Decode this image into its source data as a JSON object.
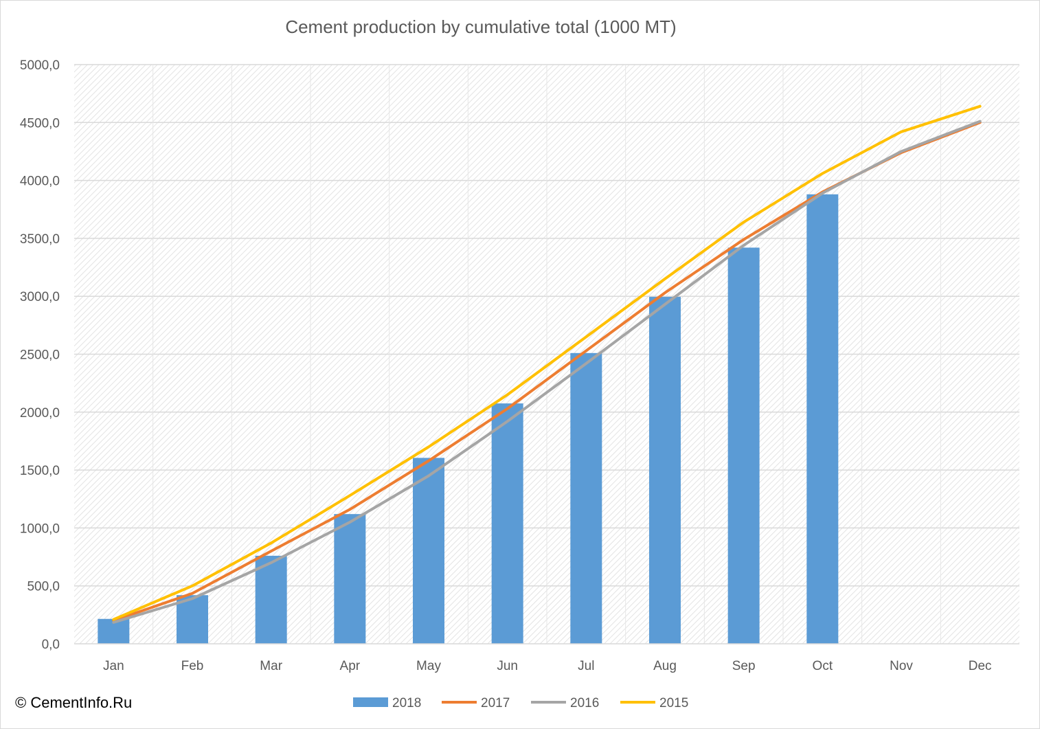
{
  "chart_data": {
    "type": "bar",
    "title": "Cement production by cumulative total (1000 MT)",
    "categories": [
      "Jan",
      "Feb",
      "Mar",
      "Apr",
      "May",
      "Jun",
      "Jul",
      "Aug",
      "Sep",
      "Oct",
      "Nov",
      "Dec"
    ],
    "ylim": [
      0,
      5000
    ],
    "yticks": [
      "0,0",
      "500,0",
      "1000,0",
      "1500,0",
      "2000,0",
      "2500,0",
      "3000,0",
      "3500,0",
      "4000,0",
      "4500,0",
      "5000,0"
    ],
    "grid": true,
    "legend_position": "bottom",
    "series": [
      {
        "name": "2018",
        "kind": "bar",
        "color": "#5b9bd5",
        "values": [
          215,
          420,
          760,
          1120,
          1605,
          2075,
          2510,
          2995,
          3420,
          3880,
          null,
          null
        ]
      },
      {
        "name": "2017",
        "kind": "line",
        "color": "#ed7d31",
        "values": [
          200,
          435,
          800,
          1160,
          1580,
          2030,
          2530,
          3030,
          3490,
          3900,
          4240,
          4500
        ]
      },
      {
        "name": "2016",
        "kind": "line",
        "color": "#a5a5a5",
        "values": [
          185,
          390,
          700,
          1050,
          1450,
          1920,
          2420,
          2930,
          3440,
          3890,
          4250,
          4510
        ]
      },
      {
        "name": "2015",
        "kind": "line",
        "color": "#ffc000",
        "values": [
          210,
          500,
          870,
          1280,
          1700,
          2150,
          2650,
          3150,
          3640,
          4060,
          4420,
          4640
        ]
      }
    ]
  },
  "footer": {
    "copyright": "© CementInfo.Ru"
  }
}
